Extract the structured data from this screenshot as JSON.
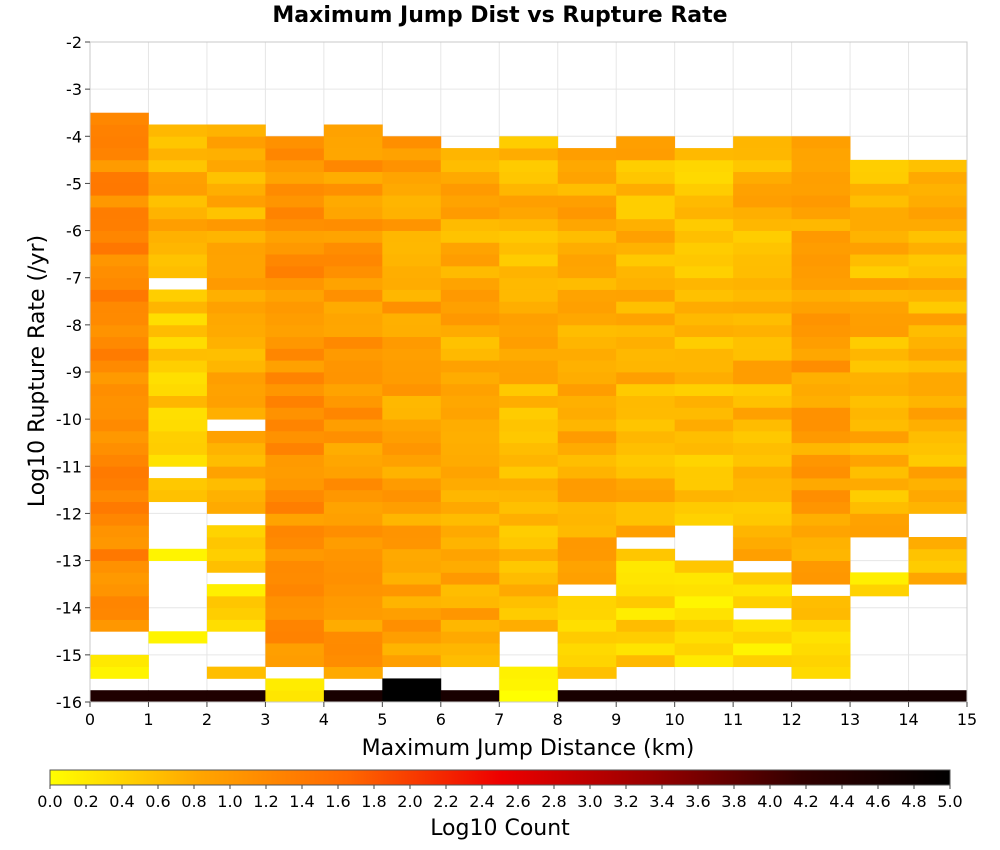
{
  "chart_data": {
    "type": "heatmap",
    "title": "Maximum Jump Dist vs Rupture Rate",
    "xlabel": "Maximum Jump Distance (km)",
    "ylabel": "Log10 Rupture Rate (/yr)",
    "colorbar_label": "Log10 Count",
    "xlim": [
      0,
      15
    ],
    "ylim": [
      -16,
      -2
    ],
    "clim": [
      0,
      5
    ],
    "x_ticks": [
      "0",
      "1",
      "2",
      "3",
      "4",
      "5",
      "6",
      "7",
      "8",
      "9",
      "10",
      "11",
      "12",
      "13",
      "14",
      "15"
    ],
    "y_ticks": [
      "-2",
      "-3",
      "-4",
      "-5",
      "-6",
      "-7",
      "-8",
      "-9",
      "-10",
      "-11",
      "-12",
      "-13",
      "-14",
      "-15",
      "-16"
    ],
    "colorbar_ticks": [
      "0.0",
      "0.2",
      "0.4",
      "0.6",
      "0.8",
      "1.0",
      "1.2",
      "1.4",
      "1.6",
      "1.8",
      "2.0",
      "2.2",
      "2.4",
      "2.6",
      "2.8",
      "3.0",
      "3.2",
      "3.4",
      "3.6",
      "3.8",
      "4.0",
      "4.2",
      "4.4",
      "4.6",
      "4.8",
      "5.0"
    ],
    "colormap": [
      "#ffff00",
      "#ffa500",
      "#ff6600",
      "#ee0000",
      "#990000",
      "#330000",
      "#000000"
    ],
    "grid": true,
    "x_bin_size": 1,
    "y_bin_size": 0.25,
    "columns": [
      {
        "x": 0.5,
        "segments": [
          [
            -16,
            -15.75,
            4.5
          ],
          [
            -15.5,
            -15,
            0.1
          ],
          [
            -14.5,
            -3.5,
            1.2
          ]
        ]
      },
      {
        "x": 1.5,
        "segments": [
          [
            -16,
            -15.75,
            4.5
          ],
          [
            -14.75,
            -14.5,
            0.1
          ],
          [
            -13,
            -12.75,
            0.1
          ],
          [
            -11.75,
            -11.25,
            0.4
          ],
          [
            -11,
            -7.25,
            0.5
          ],
          [
            -7,
            -3.75,
            0.7
          ]
        ]
      },
      {
        "x": 2.5,
        "segments": [
          [
            -16,
            -15.75,
            4.5
          ],
          [
            -15.5,
            -15.25,
            0.6
          ],
          [
            -14.5,
            -13.5,
            0.3
          ],
          [
            -13.25,
            -12.25,
            0.4
          ],
          [
            -12,
            -10.25,
            0.7
          ],
          [
            -10,
            -3.75,
            0.8
          ]
        ]
      },
      {
        "x": 3.5,
        "segments": [
          [
            -16,
            -15.5,
            0.2
          ],
          [
            -15.25,
            -4,
            1.1
          ]
        ]
      },
      {
        "x": 4.5,
        "segments": [
          [
            -16,
            -15.75,
            4.6
          ],
          [
            -15.5,
            -3.75,
            1.0
          ]
        ]
      },
      {
        "x": 5.5,
        "segments": [
          [
            -16,
            -15.5,
            5.0
          ],
          [
            -15.25,
            -4,
            0.9
          ]
        ]
      },
      {
        "x": 6.5,
        "segments": [
          [
            -16,
            -15.75,
            4.6
          ],
          [
            -15.25,
            -4.25,
            0.8
          ]
        ]
      },
      {
        "x": 7.5,
        "segments": [
          [
            -16,
            -15.25,
            0.1
          ],
          [
            -14.5,
            -4,
            0.7
          ]
        ]
      },
      {
        "x": 8.5,
        "segments": [
          [
            -16,
            -15.75,
            4.6
          ],
          [
            -15.5,
            -13.75,
            0.5
          ],
          [
            -13.5,
            -4.25,
            0.8
          ]
        ]
      },
      {
        "x": 9.5,
        "segments": [
          [
            -16,
            -15.75,
            4.6
          ],
          [
            -15.25,
            -12.75,
            0.4
          ],
          [
            -12.5,
            -4,
            0.7
          ]
        ]
      },
      {
        "x": 10.5,
        "segments": [
          [
            -16,
            -15.75,
            4.6
          ],
          [
            -15.25,
            -13,
            0.3
          ],
          [
            -12.25,
            -4.25,
            0.6
          ]
        ]
      },
      {
        "x": 11.5,
        "segments": [
          [
            -16,
            -15.75,
            4.6
          ],
          [
            -15.25,
            -14.25,
            0.2
          ],
          [
            -14,
            -13.25,
            0.4
          ],
          [
            -13,
            -4,
            0.7
          ]
        ]
      },
      {
        "x": 12.5,
        "segments": [
          [
            -16,
            -15.75,
            4.6
          ],
          [
            -15.5,
            -13.75,
            0.4
          ],
          [
            -13.5,
            -4,
            0.9
          ]
        ]
      },
      {
        "x": 13.5,
        "segments": [
          [
            -16,
            -15.75,
            4.6
          ],
          [
            -13.75,
            -13.25,
            0.3
          ],
          [
            -12.5,
            -4.5,
            0.7
          ]
        ]
      },
      {
        "x": 14.5,
        "segments": [
          [
            -16,
            -15.75,
            4.6
          ],
          [
            -13.5,
            -12.5,
            0.6
          ],
          [
            -12,
            -4.5,
            0.7
          ]
        ]
      }
    ]
  }
}
